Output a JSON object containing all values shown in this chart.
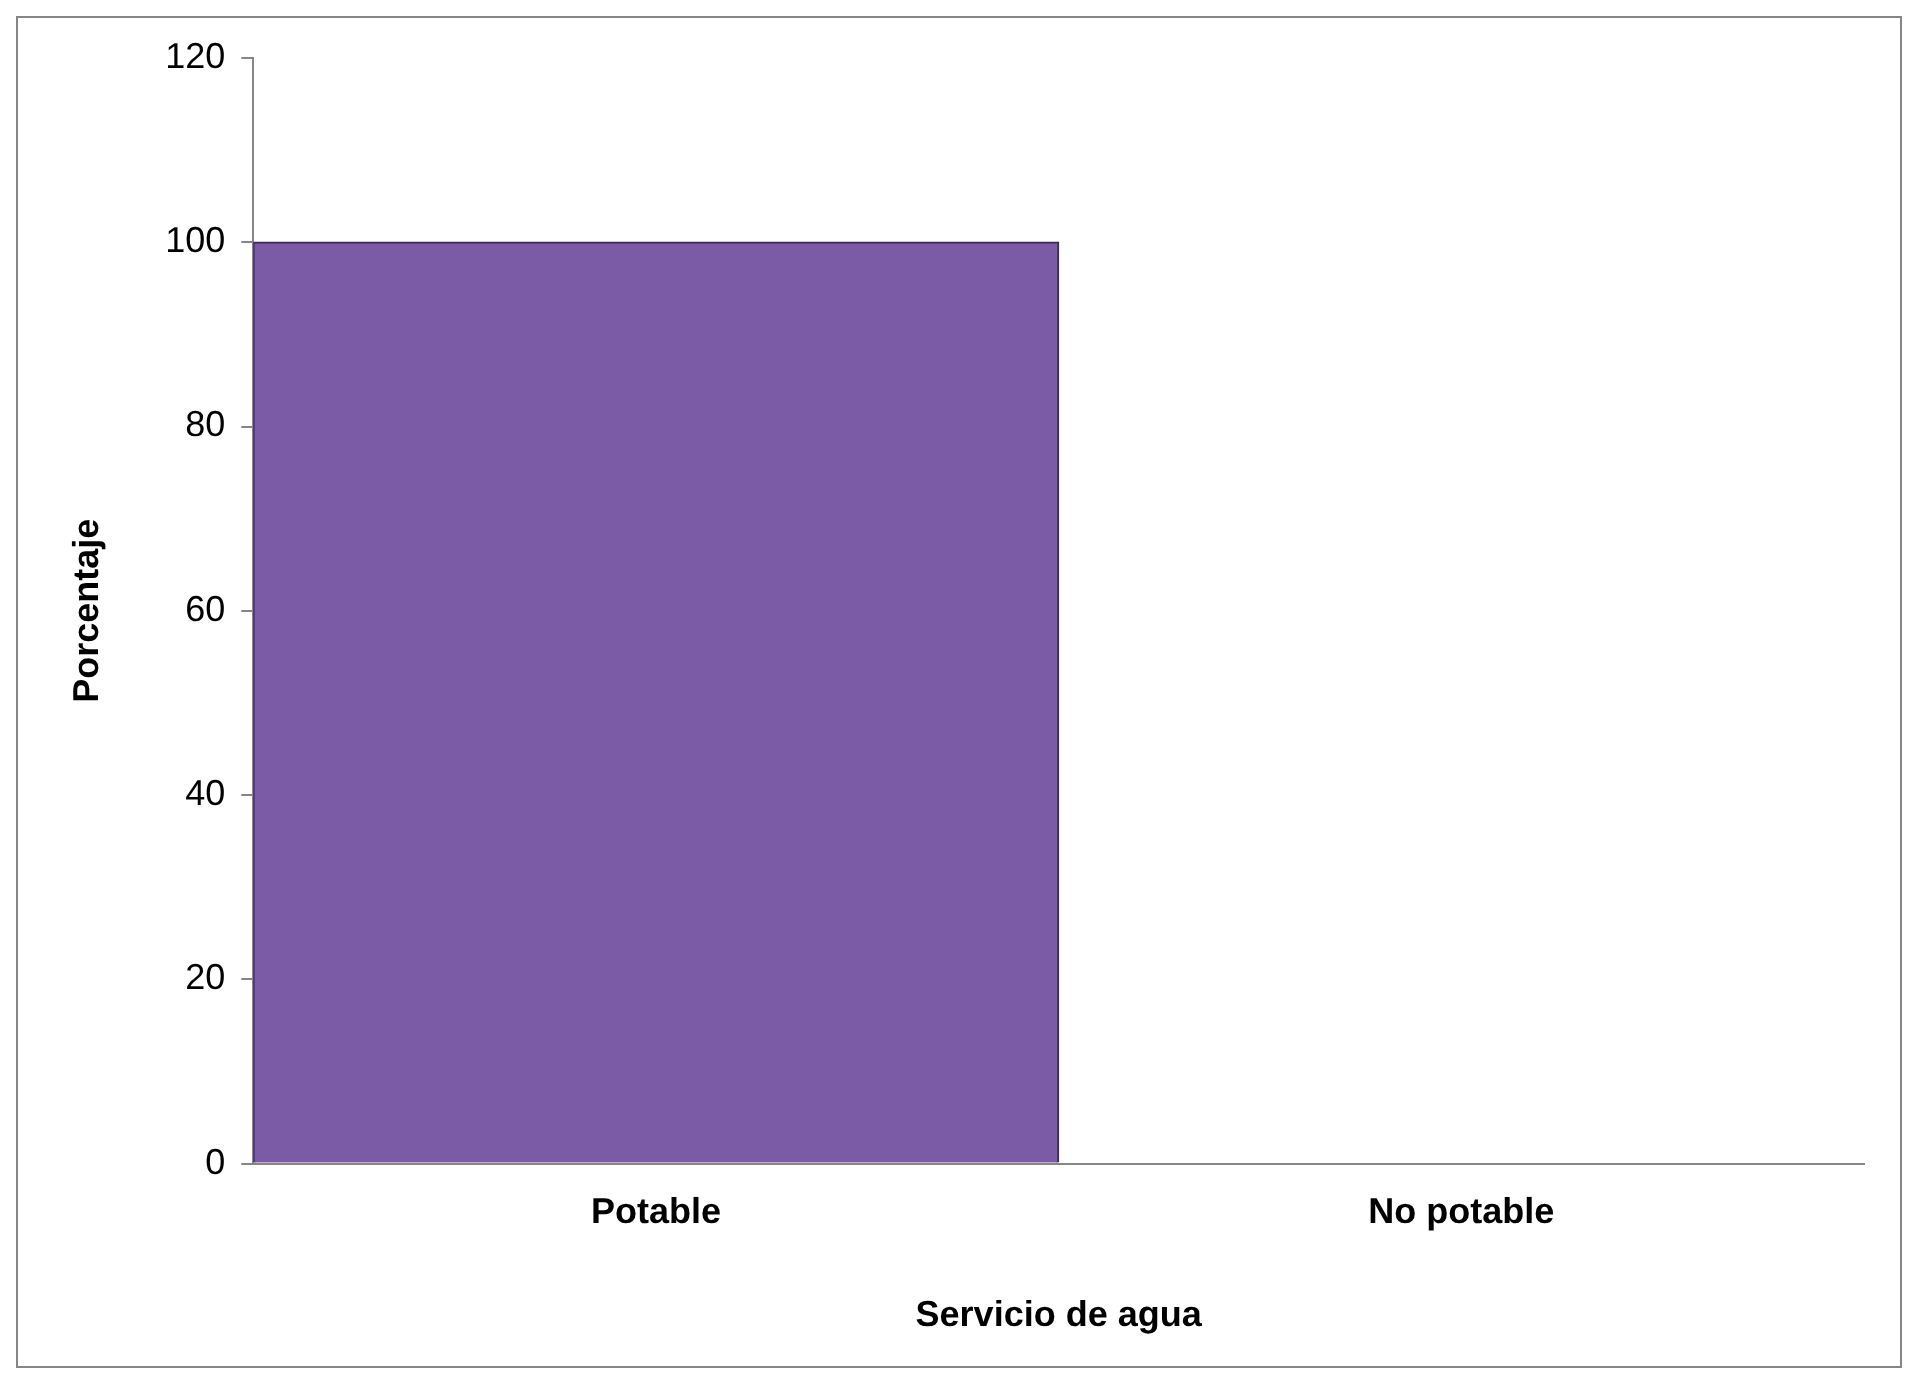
{
  "chart_data": {
    "type": "bar",
    "xlabel": "Servicio de agua",
    "ylabel": "Porcentaje",
    "categories": [
      "Potable",
      "No potable"
    ],
    "values": [
      100,
      0
    ],
    "color": "#7b5aa6",
    "ylim": [
      0,
      120
    ],
    "yticks": [
      0,
      20,
      40,
      60,
      80,
      100,
      120
    ],
    "grid": false,
    "legend": false
  }
}
